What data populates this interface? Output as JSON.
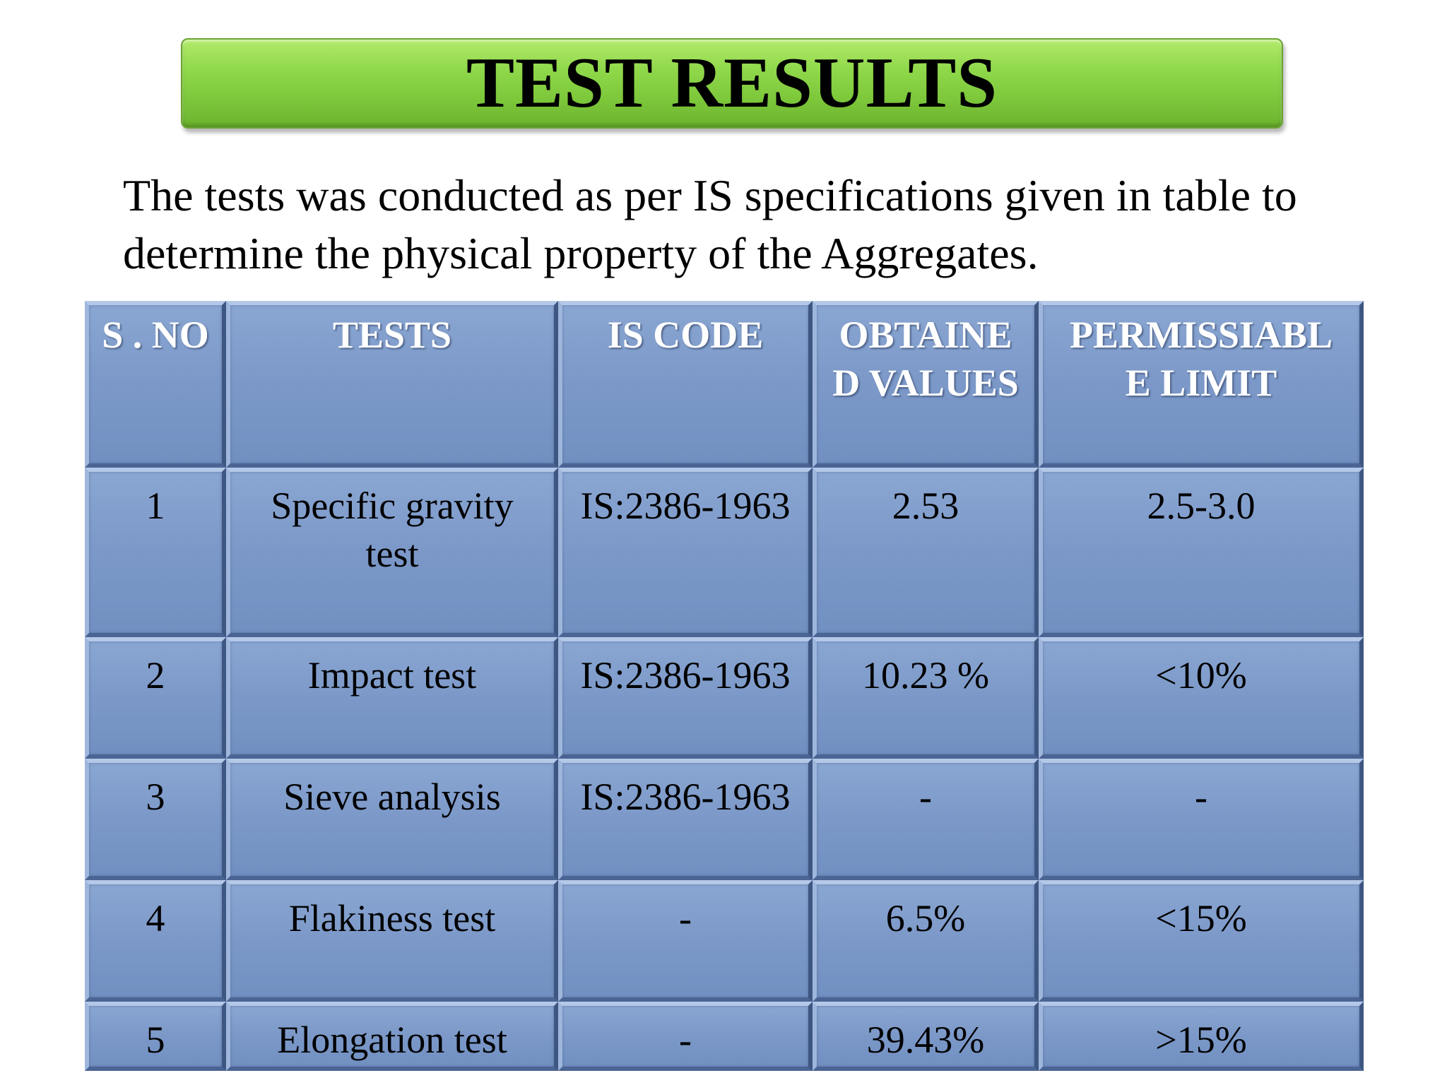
{
  "title": "TEST RESULTS",
  "intro": "The tests was conducted as per IS specifications given in table  to\ndetermine the physical property of the Aggregates.",
  "colors": {
    "banner_green": "#8fd84a",
    "cell_blue": "#7b98c8",
    "header_text": "#ffffff"
  },
  "table": {
    "headers": [
      "S . NO",
      "TESTS",
      "IS CODE",
      "OBTAINE\nD VALUES",
      "PERMISSIABL\nE LIMIT"
    ],
    "rows": [
      [
        "1",
        "Specific gravity\ntest",
        "IS:2386-1963",
        "2.53",
        "2.5-3.0"
      ],
      [
        "2",
        "Impact test",
        "IS:2386-1963",
        "10.23 %",
        "<10%"
      ],
      [
        "3",
        "Sieve analysis",
        "IS:2386-1963",
        "-",
        "-"
      ],
      [
        "4",
        "Flakiness test",
        "-",
        "6.5%",
        "<15%"
      ],
      [
        "5",
        "Elongation test",
        "-",
        "39.43%",
        ">15%"
      ]
    ]
  }
}
